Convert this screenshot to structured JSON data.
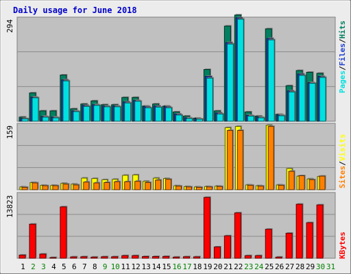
{
  "title": "Daily usage for June 2018",
  "colors": {
    "background": "#ececec",
    "plot": "#c0c0c0",
    "title": "#0000cc",
    "pages": "#00e0e0",
    "files": "#2040d0",
    "hits": "#008060",
    "visits": "#ffff00",
    "sites": "#ff8000",
    "kbytes": "#ff0000",
    "weekday_label": "#000000",
    "weekend_label": "#008000"
  },
  "panels": {
    "hits": {
      "ylabel_max": "294",
      "legend": [
        "Pages",
        "/",
        "Files",
        "/",
        "Hits"
      ]
    },
    "visits": {
      "ylabel_max": "159",
      "legend": [
        "Sites",
        "/",
        "Visits"
      ]
    },
    "kbytes": {
      "ylabel_max": "13823",
      "legend": [
        "KBytes"
      ]
    }
  },
  "chart_data": {
    "type": "bar",
    "title": "Daily usage for June 2018",
    "categories": [
      "1",
      "2",
      "3",
      "4",
      "5",
      "6",
      "7",
      "8",
      "9",
      "10",
      "11",
      "12",
      "13",
      "14",
      "15",
      "16",
      "17",
      "18",
      "19",
      "20",
      "21",
      "22",
      "23",
      "24",
      "25",
      "26",
      "27",
      "28",
      "29",
      "30",
      "31"
    ],
    "weekend_days": [
      "2",
      "3",
      "9",
      "10",
      "16",
      "17",
      "23",
      "24",
      "30",
      "31"
    ],
    "panels": [
      {
        "name": "hits",
        "ymax": 294,
        "ytick": "294",
        "series": [
          {
            "name": "Hits",
            "values": [
              12,
              82,
              30,
              30,
              134,
              36,
              50,
              59,
              48,
              48,
              69,
              69,
              44,
              50,
              44,
              27,
              15,
              9,
              150,
              30,
              276,
              308,
              27,
              15,
              268,
              20,
              103,
              147,
              142,
              139,
              0
            ]
          },
          {
            "name": "Files",
            "values": [
              8,
              70,
              14,
              12,
              120,
              30,
              46,
              48,
              44,
              44,
              56,
              60,
              42,
              44,
              42,
              21,
              10,
              7,
              130,
              24,
              228,
              300,
              17,
              12,
              240,
              18,
              88,
              137,
              112,
              130,
              0
            ]
          },
          {
            "name": "Pages",
            "values": [
              7,
              68,
              12,
              10,
              117,
              28,
              43,
              46,
              42,
              42,
              53,
              58,
              39,
              41,
              39,
              18,
              8,
              6,
              125,
              21,
              224,
              296,
              15,
              10,
              236,
              16,
              85,
              133,
              110,
              127,
              0
            ]
          }
        ]
      },
      {
        "name": "visits",
        "ymax": 159,
        "ytick": "159",
        "series": [
          {
            "name": "Visits",
            "values": [
              7,
              18,
              11,
              11,
              16,
              14,
              29,
              28,
              25,
              26,
              36,
              37,
              21,
              29,
              28,
              10,
              8,
              7,
              8,
              9,
              155,
              158,
              12,
              10,
              161,
              12,
              53,
              34,
              27,
              33,
              0
            ]
          },
          {
            "name": "Sites",
            "values": [
              6,
              17,
              10,
              10,
              14,
              12,
              19,
              17,
              18,
              20,
              20,
              21,
              18,
              24,
              26,
              9,
              7,
              6,
              7,
              8,
              148,
              148,
              11,
              9,
              158,
              11,
              46,
              35,
              25,
              34,
              0
            ]
          }
        ]
      },
      {
        "name": "kbytes",
        "ymax": 13823,
        "ytick": "13823",
        "series": [
          {
            "name": "KBytes",
            "values": [
              690,
              7476,
              910,
              110,
              11270,
              290,
              330,
              250,
              330,
              330,
              570,
              570,
              380,
              380,
              400,
              250,
              330,
              310,
              13343,
              2480,
              4920,
              9950,
              570,
              570,
              6360,
              250,
              5490,
              11850,
              7800,
              11700,
              0
            ]
          }
        ]
      }
    ]
  }
}
